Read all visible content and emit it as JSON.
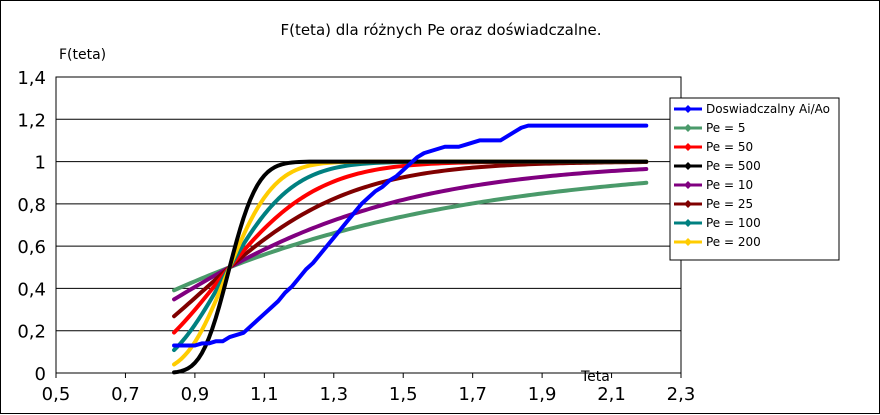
{
  "chart_data": {
    "type": "line",
    "title": "F(teta) dla różnych Pe oraz doświadczalne.",
    "xlabel": "Teta",
    "ylabel": "F(teta)",
    "xlim": [
      0.5,
      2.3
    ],
    "ylim": [
      0,
      1.4
    ],
    "xticks": [
      "0,5",
      "0,7",
      "0,9",
      "1,1",
      "1,3",
      "1,5",
      "1,7",
      "1,9",
      "2,1",
      "2,3"
    ],
    "yticks": [
      "0",
      "0,2",
      "0,4",
      "0,6",
      "0,8",
      "1",
      "1,2",
      "1,4"
    ],
    "grid": "horizontal",
    "legend_position": "right",
    "series": [
      {
        "name": "Doswiadczalny Ai/Ao",
        "color": "#0000ff",
        "x": [
          0.84,
          0.86,
          0.88,
          0.9,
          0.92,
          0.94,
          0.96,
          0.98,
          1.0,
          1.02,
          1.04,
          1.06,
          1.08,
          1.1,
          1.12,
          1.14,
          1.16,
          1.18,
          1.2,
          1.22,
          1.24,
          1.26,
          1.28,
          1.3,
          1.32,
          1.34,
          1.36,
          1.38,
          1.4,
          1.42,
          1.44,
          1.46,
          1.48,
          1.5,
          1.52,
          1.54,
          1.56,
          1.58,
          1.6,
          1.62,
          1.64,
          1.66,
          1.68,
          1.7,
          1.72,
          1.74,
          1.76,
          1.78,
          1.8,
          1.82,
          1.84,
          1.86,
          1.88,
          1.9,
          1.92,
          1.94,
          1.96,
          1.98,
          2.0,
          2.02,
          2.04,
          2.06,
          2.08,
          2.1,
          2.12,
          2.14,
          2.16,
          2.18,
          2.2
        ],
        "y": [
          0.13,
          0.13,
          0.13,
          0.13,
          0.14,
          0.14,
          0.15,
          0.15,
          0.17,
          0.18,
          0.19,
          0.22,
          0.25,
          0.28,
          0.31,
          0.34,
          0.38,
          0.41,
          0.45,
          0.49,
          0.52,
          0.56,
          0.6,
          0.64,
          0.68,
          0.72,
          0.76,
          0.8,
          0.83,
          0.86,
          0.88,
          0.91,
          0.93,
          0.96,
          0.99,
          1.02,
          1.04,
          1.05,
          1.06,
          1.07,
          1.07,
          1.07,
          1.08,
          1.09,
          1.1,
          1.1,
          1.1,
          1.1,
          1.12,
          1.14,
          1.16,
          1.17,
          1.17,
          1.17,
          1.17,
          1.17,
          1.17,
          1.17,
          1.17,
          1.17,
          1.17,
          1.17,
          1.17,
          1.17,
          1.17,
          1.17,
          1.17,
          1.17,
          1.17
        ]
      },
      {
        "name": "Pe = 5",
        "color": "#4a9a6a",
        "pe": 5
      },
      {
        "name": "Pe = 50",
        "color": "#ff0000",
        "pe": 50
      },
      {
        "name": "Pe = 500",
        "color": "#000000",
        "pe": 500
      },
      {
        "name": "Pe = 10",
        "color": "#800080",
        "pe": 10
      },
      {
        "name": "Pe = 25",
        "color": "#800000",
        "pe": 25
      },
      {
        "name": "Pe = 100",
        "color": "#008080",
        "pe": 100
      },
      {
        "name": "Pe = 200",
        "color": "#ffcc00",
        "pe": 200
      }
    ]
  }
}
